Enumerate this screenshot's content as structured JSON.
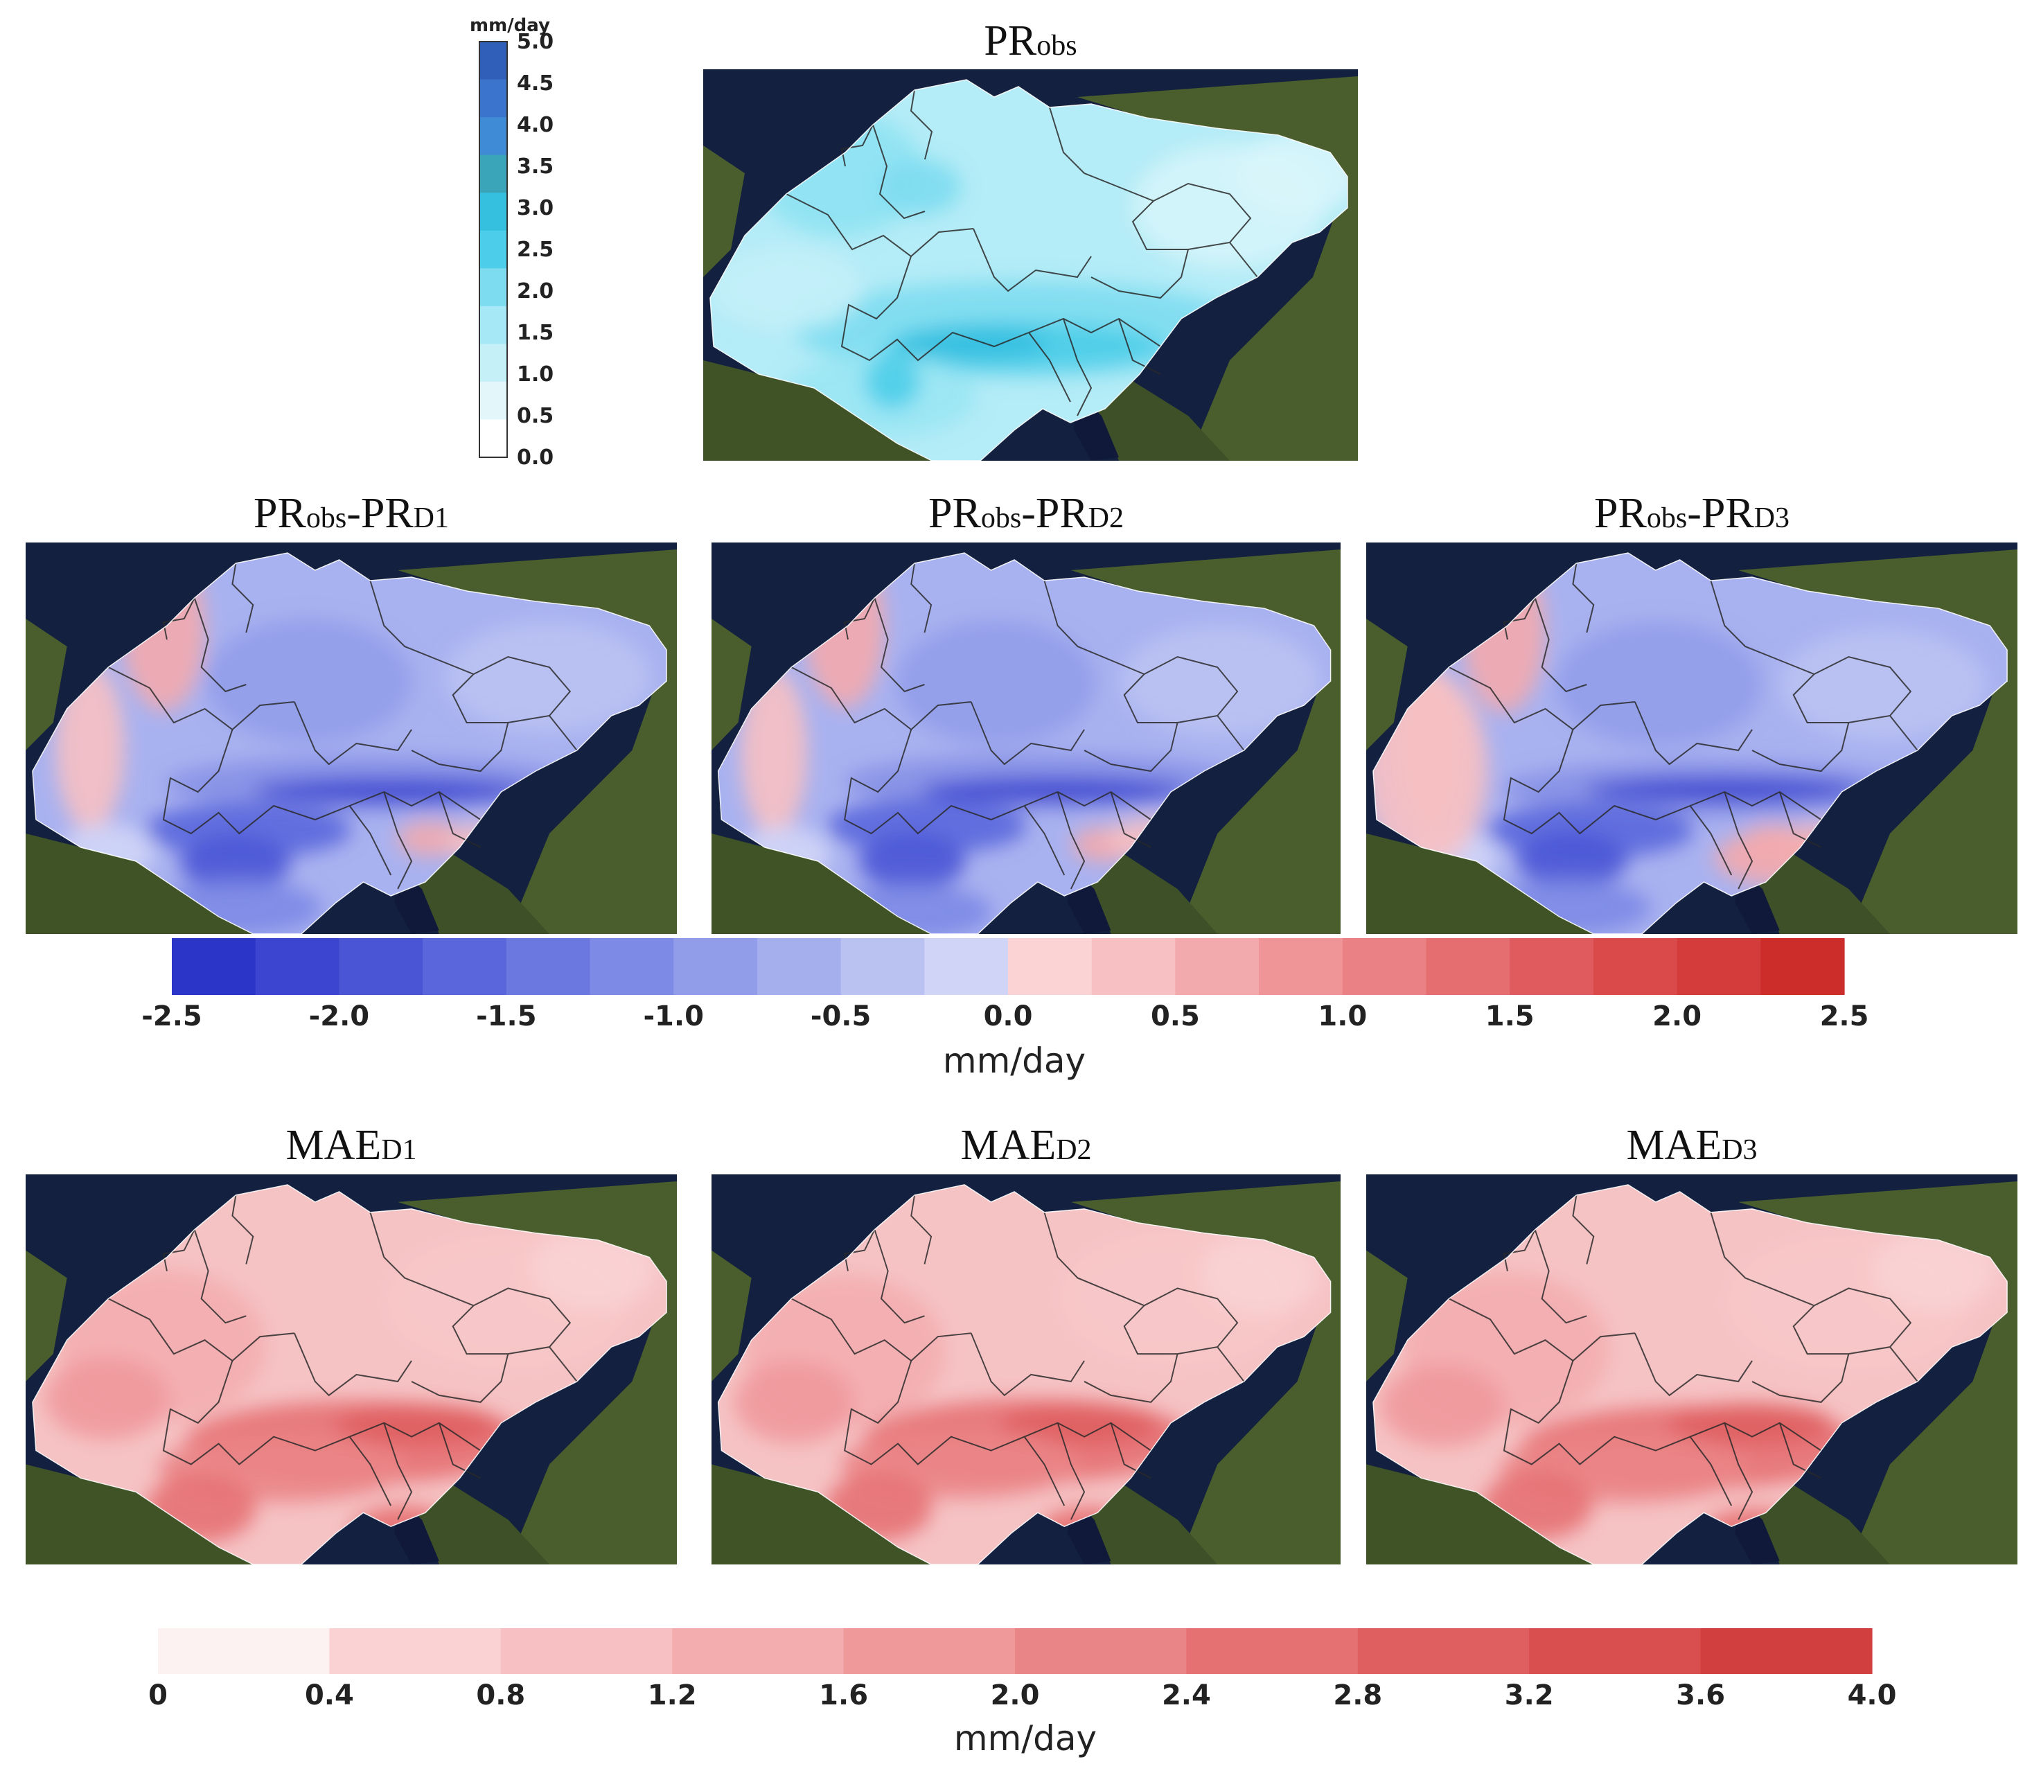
{
  "figure": {
    "obs_panel": {
      "title_main": "PR",
      "title_sub": "obs",
      "field": "observed precipitation"
    },
    "diff_row": [
      {
        "title_main": "PR",
        "title_sub": "obs",
        "title_mid": "-PR",
        "title_sub2": "D1"
      },
      {
        "title_main": "PR",
        "title_sub": "obs",
        "title_mid": "-PR",
        "title_sub2": "D2"
      },
      {
        "title_main": "PR",
        "title_sub": "obs",
        "title_mid": "-PR",
        "title_sub2": "D3"
      }
    ],
    "mae_row": [
      {
        "title_main": "MAE",
        "title_sub": "D1"
      },
      {
        "title_main": "MAE",
        "title_sub": "D2"
      },
      {
        "title_main": "MAE",
        "title_sub": "D3"
      }
    ]
  },
  "colorbars": {
    "obs": {
      "unit": "mm/day",
      "min": 0.0,
      "max": 5.0,
      "ticks": [
        "0.0",
        "0.5",
        "1.0",
        "1.5",
        "2.0",
        "2.5",
        "3.0",
        "3.5",
        "4.0",
        "4.5",
        "5.0"
      ],
      "colors": [
        "#ffffff",
        "#e3f7fb",
        "#c6f0f8",
        "#a6e8f5",
        "#7ddcf0",
        "#4ccde9",
        "#35c0e0",
        "#3aa5b8",
        "#3f8bd6",
        "#3a74cc",
        "#2f5fb8"
      ]
    },
    "diff": {
      "unit": "mm/day",
      "min": -2.5,
      "max": 2.5,
      "ticks": [
        "-2.5",
        "-2.0",
        "-1.5",
        "-1.0",
        "-0.5",
        "0.0",
        "0.5",
        "1.0",
        "1.5",
        "2.0",
        "2.5"
      ],
      "colors": [
        "#2b35c8",
        "#3b45cf",
        "#4a55d5",
        "#5a66db",
        "#6b78e0",
        "#7d8ae6",
        "#919de9",
        "#a5afee",
        "#bac2f2",
        "#d0d5f7",
        "#fbd3d5",
        "#f7c0c2",
        "#f3aaad",
        "#ef9598",
        "#ea8184",
        "#e56e70",
        "#e05b5d",
        "#da4a4b",
        "#d43b3b",
        "#cc2d2b"
      ]
    },
    "mae": {
      "unit": "mm/day",
      "min": 0,
      "max": 4.0,
      "ticks": [
        "0",
        "0.4",
        "0.8",
        "1.2",
        "1.6",
        "2.0",
        "2.4",
        "2.8",
        "3.2",
        "3.6",
        "4.0"
      ],
      "colors": [
        "#fdf2f2",
        "#fad2d4",
        "#f7c0c2",
        "#f3adaf",
        "#ef999b",
        "#ea8587",
        "#e57173",
        "#df5f61",
        "#d94e4f",
        "#d23f3f"
      ]
    }
  },
  "palette": {
    "sea": "#13203f",
    "land": "#4a5d2c",
    "border": "#2a2a2a"
  }
}
